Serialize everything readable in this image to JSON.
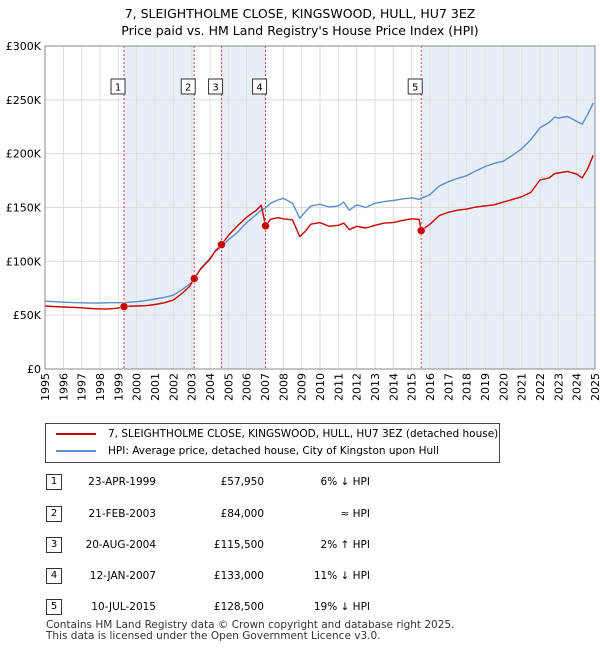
{
  "title_line1": "7, SLEIGHTHOLME CLOSE, KINGSWOOD, HULL, HU7 3EZ",
  "title_line2": "Price paid vs. HM Land Registry's House Price Index (HPI)",
  "legend": {
    "property": "7, SLEIGHTHOLME CLOSE, KINGSWOOD, HULL, HU7 3EZ (detached house)",
    "hpi": "HPI: Average price, detached house, City of Kingston upon Hull"
  },
  "colors": {
    "property": "#cc0000",
    "hpi": "#5b8fcb",
    "highlight": "#e8eef8",
    "marker_line": "#dd4444",
    "grid": "#dddddd"
  },
  "sales": [
    {
      "num": "1",
      "date": "23-APR-1999",
      "price": "£57,950",
      "rel": "6% ↓ HPI"
    },
    {
      "num": "2",
      "date": "21-FEB-2003",
      "price": "£84,000",
      "rel": "≈ HPI"
    },
    {
      "num": "3",
      "date": "20-AUG-2004",
      "price": "£115,500",
      "rel": "2% ↑ HPI"
    },
    {
      "num": "4",
      "date": "12-JAN-2007",
      "price": "£133,000",
      "rel": "11% ↓ HPI"
    },
    {
      "num": "5",
      "date": "10-JUL-2015",
      "price": "£128,500",
      "rel": "19% ↓ HPI"
    }
  ],
  "footer_line1": "Contains HM Land Registry data © Crown copyright and database right 2025.",
  "footer_line2": "This data is licensed under the Open Government Licence v3.0.",
  "chart_data": {
    "type": "line",
    "title": "7, SLEIGHTHOLME CLOSE, KINGSWOOD, HULL, HU7 3EZ",
    "subtitle": "Price paid vs. HM Land Registry's House Price Index (HPI)",
    "xlabel": "",
    "ylabel": "",
    "xlim": [
      1995,
      2025
    ],
    "ylim": [
      0,
      300000
    ],
    "x_ticks": [
      1995,
      1996,
      1997,
      1998,
      1999,
      2000,
      2001,
      2002,
      2003,
      2004,
      2005,
      2006,
      2007,
      2008,
      2009,
      2010,
      2011,
      2012,
      2013,
      2014,
      2015,
      2016,
      2017,
      2018,
      2019,
      2020,
      2021,
      2022,
      2023,
      2024,
      2025
    ],
    "y_ticks": [
      0,
      50000,
      100000,
      150000,
      200000,
      250000,
      300000
    ],
    "y_tick_labels": [
      "£0",
      "£50K",
      "£100K",
      "£150K",
      "£200K",
      "£250K",
      "£300K"
    ],
    "grid": true,
    "shaded_periods": [
      [
        1999.31,
        2003.14
      ],
      [
        2004.63,
        2007.03
      ],
      [
        2015.52,
        2025.0
      ]
    ],
    "series": [
      {
        "name": "7, SLEIGHTHOLME CLOSE, KINGSWOOD, HULL, HU7 3EZ (detached house)",
        "x": [
          1995.0,
          1995.5,
          1996.0,
          1996.5,
          1997.0,
          1997.5,
          1998.0,
          1998.5,
          1999.0,
          1999.31,
          1999.6,
          2000.0,
          2000.5,
          2001.0,
          2001.5,
          2002.0,
          2002.5,
          2002.9,
          2003.14,
          2003.5,
          2004.0,
          2004.3,
          2004.63,
          2005.0,
          2005.5,
          2006.0,
          2006.5,
          2006.8,
          2007.03,
          2007.3,
          2007.7,
          2008.0,
          2008.5,
          2008.9,
          2009.2,
          2009.5,
          2010.0,
          2010.5,
          2011.0,
          2011.3,
          2011.6,
          2012.0,
          2012.5,
          2013.0,
          2013.5,
          2014.0,
          2014.5,
          2015.0,
          2015.4,
          2015.52,
          2016.0,
          2016.5,
          2017.0,
          2017.5,
          2018.0,
          2018.5,
          2019.0,
          2019.5,
          2020.0,
          2020.5,
          2021.0,
          2021.5,
          2022.0,
          2022.5,
          2022.8,
          2023.0,
          2023.5,
          2024.0,
          2024.3,
          2024.6,
          2024.9
        ],
        "values": [
          58500,
          58000,
          57600,
          57300,
          56800,
          56200,
          55800,
          55800,
          56600,
          57950,
          58300,
          58500,
          58800,
          59900,
          61500,
          64000,
          70500,
          77000,
          84000,
          93000,
          102000,
          110000,
          115500,
          124000,
          133000,
          141000,
          147000,
          152000,
          133000,
          139000,
          140500,
          139500,
          138500,
          123000,
          128000,
          134500,
          136000,
          132500,
          133500,
          135500,
          129500,
          132500,
          131000,
          133500,
          135500,
          136000,
          138000,
          139500,
          139000,
          128500,
          134500,
          142500,
          145500,
          147500,
          148500,
          150500,
          151500,
          152500,
          155000,
          157500,
          160000,
          164000,
          175500,
          177500,
          181500,
          182000,
          183500,
          181000,
          177500,
          186000,
          198500
        ]
      },
      {
        "name": "HPI: Average price, detached house, City of Kingston upon Hull",
        "x": [
          1995.0,
          1995.5,
          1996.0,
          1996.5,
          1997.0,
          1997.5,
          1998.0,
          1998.5,
          1999.0,
          1999.31,
          1999.6,
          2000.0,
          2000.5,
          2001.0,
          2001.5,
          2002.0,
          2002.5,
          2002.9,
          2003.14,
          2003.5,
          2004.0,
          2004.3,
          2004.63,
          2005.0,
          2005.5,
          2006.0,
          2006.5,
          2006.8,
          2007.03,
          2007.3,
          2007.7,
          2008.0,
          2008.5,
          2008.9,
          2009.2,
          2009.5,
          2010.0,
          2010.5,
          2011.0,
          2011.3,
          2011.6,
          2012.0,
          2012.5,
          2013.0,
          2013.5,
          2014.0,
          2014.5,
          2015.0,
          2015.4,
          2015.52,
          2016.0,
          2016.5,
          2017.0,
          2017.5,
          2018.0,
          2018.5,
          2019.0,
          2019.5,
          2020.0,
          2020.5,
          2021.0,
          2021.5,
          2022.0,
          2022.5,
          2022.8,
          2023.0,
          2023.5,
          2024.0,
          2024.3,
          2024.6,
          2024.9
        ],
        "values": [
          63000,
          62500,
          62000,
          61700,
          61500,
          61200,
          61300,
          61600,
          61600,
          61700,
          62000,
          62500,
          63500,
          65000,
          66500,
          68500,
          74000,
          79000,
          84000,
          93500,
          103000,
          109500,
          113000,
          120000,
          127000,
          136000,
          143000,
          147500,
          149500,
          154000,
          157000,
          158500,
          154000,
          140000,
          146000,
          151500,
          153000,
          150500,
          151500,
          155000,
          147500,
          152500,
          150000,
          154000,
          155500,
          156500,
          158000,
          159000,
          157500,
          158500,
          162000,
          170000,
          174000,
          177000,
          179500,
          184000,
          188000,
          191000,
          193000,
          198500,
          204500,
          213000,
          224000,
          229000,
          234000,
          233000,
          234500,
          230000,
          227500,
          236500,
          247000
        ]
      }
    ],
    "annotations": [
      {
        "label": "1",
        "x": 1999.31,
        "y": 57950
      },
      {
        "label": "2",
        "x": 2003.14,
        "y": 84000
      },
      {
        "label": "3",
        "x": 2004.63,
        "y": 115500
      },
      {
        "label": "4",
        "x": 2007.03,
        "y": 133000
      },
      {
        "label": "5",
        "x": 2015.52,
        "y": 128500
      }
    ]
  }
}
